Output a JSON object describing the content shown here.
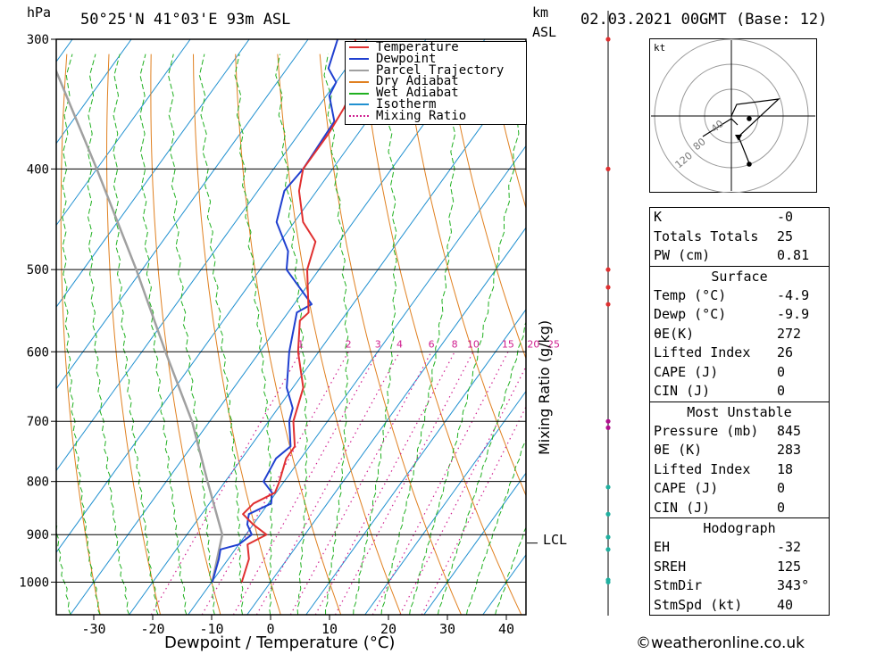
{
  "header": {
    "hpa_label": "hPa",
    "location": "50°25'N 41°03'E 93m ASL",
    "km_label": "km",
    "asl_label": "ASL",
    "datetime": "02.03.2021 00GMT (Base: 12)"
  },
  "legend": {
    "items": [
      {
        "label": "Temperature",
        "color": "#e03030",
        "style": "solid"
      },
      {
        "label": "Dewpoint",
        "color": "#2040d0",
        "style": "solid"
      },
      {
        "label": "Parcel Trajectory",
        "color": "#a0a0a0",
        "style": "solid"
      },
      {
        "label": "Dry Adiabat",
        "color": "#e08020",
        "style": "solid"
      },
      {
        "label": "Wet Adiabat",
        "color": "#20b020",
        "style": "solid"
      },
      {
        "label": "Isotherm",
        "color": "#2090d0",
        "style": "solid"
      },
      {
        "label": "Mixing Ratio",
        "color": "#d02090",
        "style": "dotted"
      }
    ]
  },
  "axes": {
    "xlabel": "Dewpoint / Temperature (°C)",
    "ylabel_right": "Mixing Ratio (g/kg)",
    "lcl_label": "LCL"
  },
  "hodograph": {
    "unit_label": "kt",
    "ring_labels": [
      "40",
      "80",
      "120"
    ]
  },
  "indices": {
    "top": [
      {
        "label": "K",
        "value": "-0"
      },
      {
        "label": "Totals Totals",
        "value": "25"
      },
      {
        "label": "PW (cm)",
        "value": "0.81"
      }
    ],
    "surface": {
      "title": "Surface",
      "rows": [
        {
          "label": "Temp (°C)",
          "value": "-4.9"
        },
        {
          "label": "Dewp (°C)",
          "value": "-9.9"
        },
        {
          "label": "θE(K)",
          "value": "272"
        },
        {
          "label": "Lifted Index",
          "value": "26"
        },
        {
          "label": "CAPE (J)",
          "value": "0"
        },
        {
          "label": "CIN (J)",
          "value": "0"
        }
      ]
    },
    "most_unstable": {
      "title": "Most Unstable",
      "rows": [
        {
          "label": "Pressure (mb)",
          "value": "845"
        },
        {
          "label": "θE (K)",
          "value": "283"
        },
        {
          "label": "Lifted Index",
          "value": "18"
        },
        {
          "label": "CAPE (J)",
          "value": "0"
        },
        {
          "label": "CIN (J)",
          "value": "0"
        }
      ]
    },
    "hodograph": {
      "title": "Hodograph",
      "rows": [
        {
          "label": "EH",
          "value": "-32"
        },
        {
          "label": "SREH",
          "value": "125"
        },
        {
          "label": "StmDir",
          "value": "343°"
        },
        {
          "label": "StmSpd (kt)",
          "value": "40"
        }
      ]
    }
  },
  "footer": "©weatheronline.co.uk",
  "chart_data": {
    "type": "skew-t",
    "pressure_levels": [
      300,
      400,
      500,
      600,
      700,
      800,
      900,
      1000
    ],
    "pressure_range": [
      1075,
      300
    ],
    "x_ticks": [
      -30,
      -20,
      -10,
      0,
      10,
      20,
      30,
      40
    ],
    "mixing_ratio_labels": [
      "1",
      "2",
      "3",
      "4",
      "6",
      "8",
      "10",
      "15",
      "20",
      "25"
    ],
    "temperature": {
      "name": "Temperature",
      "p": [
        1000,
        950,
        920,
        900,
        880,
        860,
        840,
        820,
        800,
        760,
        740,
        700,
        650,
        600,
        560,
        550,
        500,
        470,
        450,
        420,
        400,
        370,
        350,
        330,
        320,
        300
      ],
      "t": [
        -4.9,
        -6.5,
        -8.5,
        -6.5,
        -10,
        -13,
        -12.5,
        -10.2,
        -10.8,
        -12.5,
        -12.5,
        -15.8,
        -18.2,
        -23.5,
        -27,
        -26.5,
        -32,
        -34,
        -38.5,
        -43,
        -45,
        -45,
        -45.5,
        -46.5,
        -48.5,
        -52
      ]
    },
    "dewpoint": {
      "name": "Dewpoint",
      "p": [
        1000,
        950,
        930,
        920,
        900,
        880,
        860,
        840,
        820,
        800,
        760,
        740,
        700,
        680,
        650,
        600,
        550,
        540,
        500,
        480,
        450,
        420,
        400,
        360,
        340,
        330,
        320,
        300
      ],
      "td": [
        -9.9,
        -11.6,
        -12.5,
        -10,
        -9,
        -11,
        -12,
        -9.5,
        -10.7,
        -13.5,
        -14.2,
        -13.2,
        -16.5,
        -17.5,
        -21,
        -25,
        -28.5,
        -27,
        -35.5,
        -37.5,
        -43,
        -45.5,
        -45,
        -45.5,
        -49.5,
        -50,
        -53,
        -55
      ]
    },
    "parcel": {
      "name": "Parcel Trajectory",
      "p": [
        1000,
        900,
        800,
        700,
        600,
        500,
        400,
        300
      ],
      "t": [
        -9.9,
        -14,
        -23,
        -33,
        -46,
        -61,
        -80,
        -105
      ]
    },
    "km_ticks": [
      {
        "p": 300
      },
      {
        "p": 400
      },
      {
        "p": 500
      },
      {
        "p": 520
      },
      {
        "p": 540
      },
      {
        "p": 700
      },
      {
        "p": 710
      },
      {
        "p": 810
      },
      {
        "p": 860
      },
      {
        "p": 905
      },
      {
        "p": 930
      },
      {
        "p": 995
      },
      {
        "p": 1000
      }
    ],
    "lcl_pressure": 917
  }
}
